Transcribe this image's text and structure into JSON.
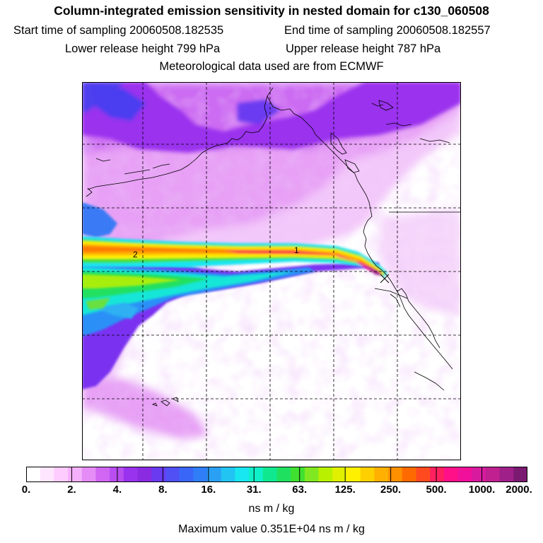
{
  "header": {
    "title": "Column-integrated emission sensitivity in nested domain for c130_060508",
    "start_label": "Start time of sampling 20060508.182535",
    "end_label": "End time of sampling 20060508.182557",
    "lower_label": "Lower release height  799 hPa",
    "upper_label": "Upper release height  787 hPa",
    "met_label": "Meteorological data used are from ECMWF"
  },
  "map": {
    "markers": [
      "2",
      "1"
    ]
  },
  "colorbar": {
    "tick_labels": [
      "0.",
      "2.",
      "4.",
      "8.",
      "16.",
      "31.",
      "63.",
      "125.",
      "250.",
      "500.",
      "1000.",
      "2000."
    ],
    "colors": [
      "#ffffff",
      "#ffe6ff",
      "#ffccff",
      "#f5b0fb",
      "#e58cf7",
      "#d066f2",
      "#b84df0",
      "#9933ee",
      "#8a2be2",
      "#6a3af0",
      "#5050f5",
      "#3a66f7",
      "#2f7ef7",
      "#2aa0f5",
      "#22c4f2",
      "#18e6f0",
      "#10f0c8",
      "#10e890",
      "#20e060",
      "#40e030",
      "#80e820",
      "#b8f000",
      "#e0f000",
      "#fff000",
      "#ffd000",
      "#ffb000",
      "#ff9000",
      "#ff6a00",
      "#ff4a20",
      "#ff2060",
      "#ff1088",
      "#f01099",
      "#d81a9e",
      "#c02090",
      "#a0208a",
      "#7a1a70"
    ]
  },
  "units": "ns m / kg",
  "max_value": "Maximum value  0.351E+04 ns m / kg"
}
